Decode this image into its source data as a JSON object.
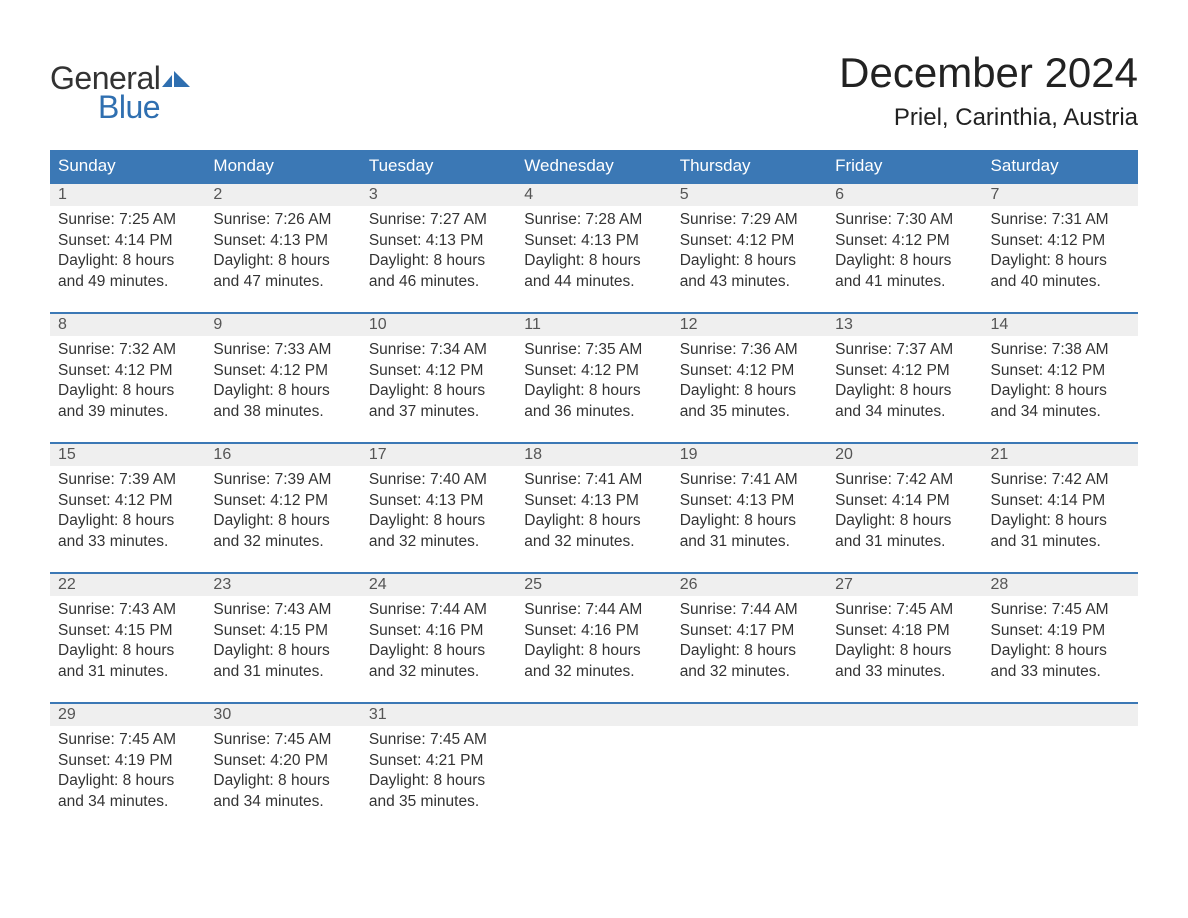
{
  "logo": {
    "text_general": "General",
    "text_blue": "Blue",
    "flag_color": "#2f6fb0"
  },
  "title": "December 2024",
  "location": "Priel, Carinthia, Austria",
  "colors": {
    "header_bg": "#3b78b5",
    "header_text": "#ffffff",
    "date_row_bg": "#efefef",
    "week_border": "#3b78b5",
    "body_text": "#333333",
    "date_text": "#555555",
    "page_bg": "#ffffff"
  },
  "day_names": [
    "Sunday",
    "Monday",
    "Tuesday",
    "Wednesday",
    "Thursday",
    "Friday",
    "Saturday"
  ],
  "weeks": [
    {
      "days": [
        {
          "date": "1",
          "sunrise": "7:25 AM",
          "sunset": "4:14 PM",
          "daylight": "8 hours and 49 minutes."
        },
        {
          "date": "2",
          "sunrise": "7:26 AM",
          "sunset": "4:13 PM",
          "daylight": "8 hours and 47 minutes."
        },
        {
          "date": "3",
          "sunrise": "7:27 AM",
          "sunset": "4:13 PM",
          "daylight": "8 hours and 46 minutes."
        },
        {
          "date": "4",
          "sunrise": "7:28 AM",
          "sunset": "4:13 PM",
          "daylight": "8 hours and 44 minutes."
        },
        {
          "date": "5",
          "sunrise": "7:29 AM",
          "sunset": "4:12 PM",
          "daylight": "8 hours and 43 minutes."
        },
        {
          "date": "6",
          "sunrise": "7:30 AM",
          "sunset": "4:12 PM",
          "daylight": "8 hours and 41 minutes."
        },
        {
          "date": "7",
          "sunrise": "7:31 AM",
          "sunset": "4:12 PM",
          "daylight": "8 hours and 40 minutes."
        }
      ]
    },
    {
      "days": [
        {
          "date": "8",
          "sunrise": "7:32 AM",
          "sunset": "4:12 PM",
          "daylight": "8 hours and 39 minutes."
        },
        {
          "date": "9",
          "sunrise": "7:33 AM",
          "sunset": "4:12 PM",
          "daylight": "8 hours and 38 minutes."
        },
        {
          "date": "10",
          "sunrise": "7:34 AM",
          "sunset": "4:12 PM",
          "daylight": "8 hours and 37 minutes."
        },
        {
          "date": "11",
          "sunrise": "7:35 AM",
          "sunset": "4:12 PM",
          "daylight": "8 hours and 36 minutes."
        },
        {
          "date": "12",
          "sunrise": "7:36 AM",
          "sunset": "4:12 PM",
          "daylight": "8 hours and 35 minutes."
        },
        {
          "date": "13",
          "sunrise": "7:37 AM",
          "sunset": "4:12 PM",
          "daylight": "8 hours and 34 minutes."
        },
        {
          "date": "14",
          "sunrise": "7:38 AM",
          "sunset": "4:12 PM",
          "daylight": "8 hours and 34 minutes."
        }
      ]
    },
    {
      "days": [
        {
          "date": "15",
          "sunrise": "7:39 AM",
          "sunset": "4:12 PM",
          "daylight": "8 hours and 33 minutes."
        },
        {
          "date": "16",
          "sunrise": "7:39 AM",
          "sunset": "4:12 PM",
          "daylight": "8 hours and 32 minutes."
        },
        {
          "date": "17",
          "sunrise": "7:40 AM",
          "sunset": "4:13 PM",
          "daylight": "8 hours and 32 minutes."
        },
        {
          "date": "18",
          "sunrise": "7:41 AM",
          "sunset": "4:13 PM",
          "daylight": "8 hours and 32 minutes."
        },
        {
          "date": "19",
          "sunrise": "7:41 AM",
          "sunset": "4:13 PM",
          "daylight": "8 hours and 31 minutes."
        },
        {
          "date": "20",
          "sunrise": "7:42 AM",
          "sunset": "4:14 PM",
          "daylight": "8 hours and 31 minutes."
        },
        {
          "date": "21",
          "sunrise": "7:42 AM",
          "sunset": "4:14 PM",
          "daylight": "8 hours and 31 minutes."
        }
      ]
    },
    {
      "days": [
        {
          "date": "22",
          "sunrise": "7:43 AM",
          "sunset": "4:15 PM",
          "daylight": "8 hours and 31 minutes."
        },
        {
          "date": "23",
          "sunrise": "7:43 AM",
          "sunset": "4:15 PM",
          "daylight": "8 hours and 31 minutes."
        },
        {
          "date": "24",
          "sunrise": "7:44 AM",
          "sunset": "4:16 PM",
          "daylight": "8 hours and 32 minutes."
        },
        {
          "date": "25",
          "sunrise": "7:44 AM",
          "sunset": "4:16 PM",
          "daylight": "8 hours and 32 minutes."
        },
        {
          "date": "26",
          "sunrise": "7:44 AM",
          "sunset": "4:17 PM",
          "daylight": "8 hours and 32 minutes."
        },
        {
          "date": "27",
          "sunrise": "7:45 AM",
          "sunset": "4:18 PM",
          "daylight": "8 hours and 33 minutes."
        },
        {
          "date": "28",
          "sunrise": "7:45 AM",
          "sunset": "4:19 PM",
          "daylight": "8 hours and 33 minutes."
        }
      ]
    },
    {
      "days": [
        {
          "date": "29",
          "sunrise": "7:45 AM",
          "sunset": "4:19 PM",
          "daylight": "8 hours and 34 minutes."
        },
        {
          "date": "30",
          "sunrise": "7:45 AM",
          "sunset": "4:20 PM",
          "daylight": "8 hours and 34 minutes."
        },
        {
          "date": "31",
          "sunrise": "7:45 AM",
          "sunset": "4:21 PM",
          "daylight": "8 hours and 35 minutes."
        },
        {
          "date": "",
          "sunrise": "",
          "sunset": "",
          "daylight": ""
        },
        {
          "date": "",
          "sunrise": "",
          "sunset": "",
          "daylight": ""
        },
        {
          "date": "",
          "sunrise": "",
          "sunset": "",
          "daylight": ""
        },
        {
          "date": "",
          "sunrise": "",
          "sunset": "",
          "daylight": ""
        }
      ]
    }
  ],
  "labels": {
    "sunrise_prefix": "Sunrise: ",
    "sunset_prefix": "Sunset: ",
    "daylight_prefix": "Daylight: "
  }
}
